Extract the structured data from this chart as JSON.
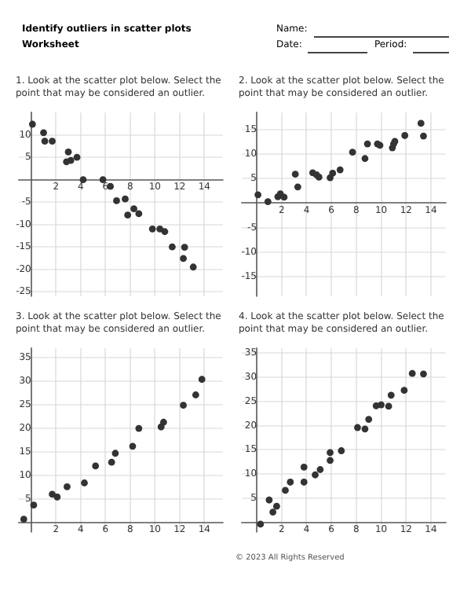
{
  "chart_data": [
    {
      "type": "other",
      "title": "Identify outliers in scatter plots",
      "subtitle": "Worksheet",
      "annotations": [
        "Name:",
        "Date:",
        "Period:"
      ]
    },
    {
      "type": "scatter",
      "title": "1. Look at the scatter plot below. Select the point that may be considered an outlier.",
      "color": "#333333",
      "marker": "circle",
      "grid": true,
      "legend": false,
      "x": [
        0.1,
        1,
        1.1,
        1.7,
        3.0,
        2.85,
        3.2,
        3.7,
        4.2,
        5.8,
        6.4,
        6.9,
        7.6,
        7.8,
        8.3,
        8.7,
        9.8,
        10.4,
        10.8,
        11.4,
        12.4,
        12.3,
        13.1
      ],
      "values": [
        12.4,
        10.5,
        8.6,
        8.6,
        6.2,
        4.0,
        4.3,
        5.0,
        0,
        0,
        -1.5,
        -4.7,
        -4.3,
        -7.9,
        -6.5,
        -7.6,
        -11,
        -11,
        -11.6,
        -15,
        -15.1,
        -17.6,
        -19.5
      ],
      "xlim": [
        -1,
        15.5
      ],
      "ylim": [
        -26,
        15
      ],
      "xticks": [
        2,
        4,
        6,
        8,
        10,
        12,
        14
      ],
      "yticks": [
        10,
        5,
        -5,
        -10,
        -15,
        -20,
        -25
      ]
    },
    {
      "type": "scatter",
      "title": "2. Look at the scatter plot below. Select the point that may be considered an outlier.",
      "color": "#333333",
      "marker": "circle",
      "grid": true,
      "legend": false,
      "x": [
        0.1,
        0.9,
        1.7,
        1.9,
        2.2,
        3.1,
        3.3,
        4.5,
        4.8,
        5.0,
        5.9,
        6.1,
        6.7,
        7.7,
        8.7,
        8.9,
        9.7,
        9.9,
        10.9,
        11.0,
        11.1,
        11.9,
        13.2,
        13.4
      ],
      "values": [
        1.7,
        0.3,
        1.3,
        1.9,
        1.2,
        5.9,
        3.3,
        6.2,
        5.8,
        5.3,
        5.2,
        6.1,
        6.8,
        10.4,
        9.1,
        12.1,
        12.1,
        11.8,
        11.3,
        12.1,
        12.6,
        13.8,
        16.3,
        13.7
      ],
      "xlim": [
        -1.2,
        15.2
      ],
      "ylim": [
        -19,
        18.5
      ],
      "xticks": [
        2,
        4,
        6,
        8,
        10,
        12,
        14
      ],
      "yticks": [
        15,
        10,
        5,
        -5,
        -10,
        -15
      ]
    },
    {
      "type": "scatter",
      "title": "3. Look at the scatter plot below. Select the point that may be considered an outlier.",
      "color": "#333333",
      "marker": "circle",
      "grid": true,
      "legend": false,
      "x": [
        -0.6,
        0.2,
        1.7,
        2.1,
        2.9,
        4.3,
        5.2,
        6.5,
        6.8,
        8.2,
        8.7,
        10.5,
        10.7,
        12.3,
        13.3,
        13.8
      ],
      "values": [
        0.7,
        3.7,
        6.0,
        5.4,
        7.6,
        8.4,
        12.0,
        12.8,
        14.7,
        16.2,
        20.0,
        20.3,
        21.3,
        24.9,
        27.1,
        30.4
      ],
      "xlim": [
        -1,
        15.5
      ],
      "ylim": [
        -2,
        37
      ],
      "xticks": [
        2,
        4,
        6,
        8,
        10,
        12,
        14
      ],
      "yticks": [
        5,
        10,
        15,
        20,
        25,
        30,
        35
      ]
    },
    {
      "type": "scatter",
      "title": "4. Look at the scatter plot below. Select the point that may be considered an outlier.",
      "color": "#333333",
      "marker": "circle",
      "grid": true,
      "legend": false,
      "x": [
        0.3,
        1.0,
        1.3,
        1.6,
        2.3,
        2.7,
        3.8,
        3.8,
        4.7,
        5.1,
        5.9,
        5.9,
        6.8,
        8.1,
        8.7,
        9.0,
        9.6,
        10.0,
        10.6,
        10.8,
        11.85,
        12.5,
        13.4
      ],
      "values": [
        -0.4,
        4.6,
        2.1,
        3.3,
        6.6,
        8.3,
        8.3,
        11.4,
        9.8,
        10.9,
        12.8,
        14.4,
        14.8,
        19.6,
        19.3,
        21.3,
        24.1,
        24.3,
        24.0,
        26.3,
        27.3,
        30.8,
        30.7
      ],
      "xlim": [
        -1.2,
        15.2
      ],
      "ylim": [
        -2,
        36
      ],
      "xticks": [
        2,
        4,
        6,
        8,
        10,
        12,
        14
      ],
      "yticks": [
        5,
        10,
        15,
        20,
        25,
        30,
        35
      ],
      "annotations": [
        "© 2023 All Rights Reserved"
      ]
    }
  ]
}
